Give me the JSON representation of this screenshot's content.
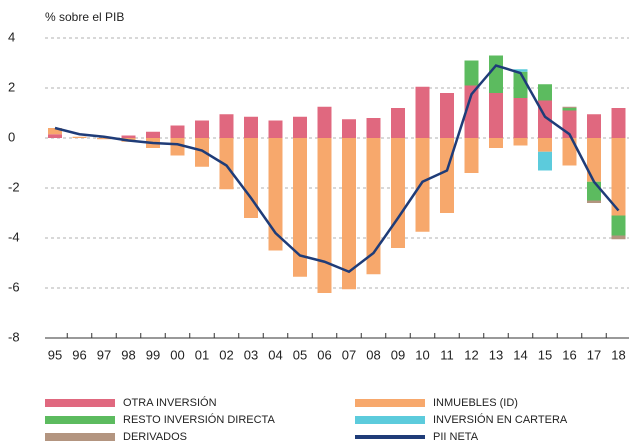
{
  "chart_data": {
    "type": "bar-line",
    "y_label": "% sobre el PIB",
    "categories": [
      "95",
      "96",
      "97",
      "98",
      "99",
      "00",
      "01",
      "02",
      "03",
      "04",
      "05",
      "06",
      "07",
      "08",
      "09",
      "10",
      "11",
      "12",
      "13",
      "14",
      "15",
      "16",
      "17",
      "18"
    ],
    "ylim": [
      -8,
      4
    ],
    "yticks": [
      -8,
      -6,
      -4,
      -2,
      0,
      2,
      4
    ],
    "grid": true,
    "series": [
      {
        "name": "OTRA INVERSIÓN",
        "color": "#e0687f",
        "values": [
          0.15,
          0,
          0,
          0.1,
          0.25,
          0.5,
          0.7,
          0.95,
          0.85,
          0.7,
          0.85,
          1.25,
          0.75,
          0.8,
          1.2,
          2.05,
          1.8,
          2.1,
          1.8,
          1.6,
          1.5,
          1.1,
          0.95,
          1.2
        ]
      },
      {
        "name": "INMUEBLES (ID)",
        "color": "#f7a86c",
        "values": [
          0.25,
          0.05,
          -0.05,
          -0.15,
          -0.4,
          -0.7,
          -1.15,
          -2.05,
          -3.2,
          -4.5,
          -5.55,
          -6.2,
          -6.05,
          -5.45,
          -4.4,
          -3.75,
          -3.0,
          -1.4,
          -0.4,
          -0.3,
          -0.55,
          -1.1,
          -1.75,
          -3.1
        ]
      },
      {
        "name": "RESTO INVERSIÓN DIRECTA",
        "color": "#5cbb5f",
        "values": [
          0,
          0,
          0,
          0,
          0,
          0,
          0,
          0,
          0,
          0,
          0,
          0,
          0,
          0,
          0,
          0,
          0,
          1.0,
          1.5,
          1.05,
          0.65,
          0.1,
          -0.75,
          -0.8
        ]
      },
      {
        "name": "INVERSIÓN EN CARTERA",
        "color": "#5ccbdc",
        "values": [
          0,
          0,
          0,
          0,
          0,
          0,
          0,
          0,
          0,
          0,
          0,
          0,
          0,
          0,
          0,
          0,
          0,
          0,
          0,
          0.1,
          -0.75,
          0,
          0,
          0
        ]
      },
      {
        "name": "DERIVADOS",
        "color": "#b39580",
        "values": [
          0,
          0,
          0,
          0,
          0,
          0,
          0,
          0,
          0,
          0,
          0,
          0,
          0,
          0,
          0,
          0,
          0,
          0,
          0,
          0,
          0,
          0.05,
          -0.1,
          -0.15
        ]
      },
      {
        "name": "PII NETA",
        "color": "#1f3c78",
        "type": "line",
        "values": [
          0.4,
          0.15,
          0.05,
          -0.1,
          -0.2,
          -0.25,
          -0.5,
          -1.1,
          -2.4,
          -3.8,
          -4.7,
          -4.95,
          -5.35,
          -4.6,
          -3.2,
          -1.75,
          -1.3,
          1.75,
          2.9,
          2.6,
          0.85,
          0.15,
          -1.75,
          -2.9
        ]
      }
    ]
  }
}
